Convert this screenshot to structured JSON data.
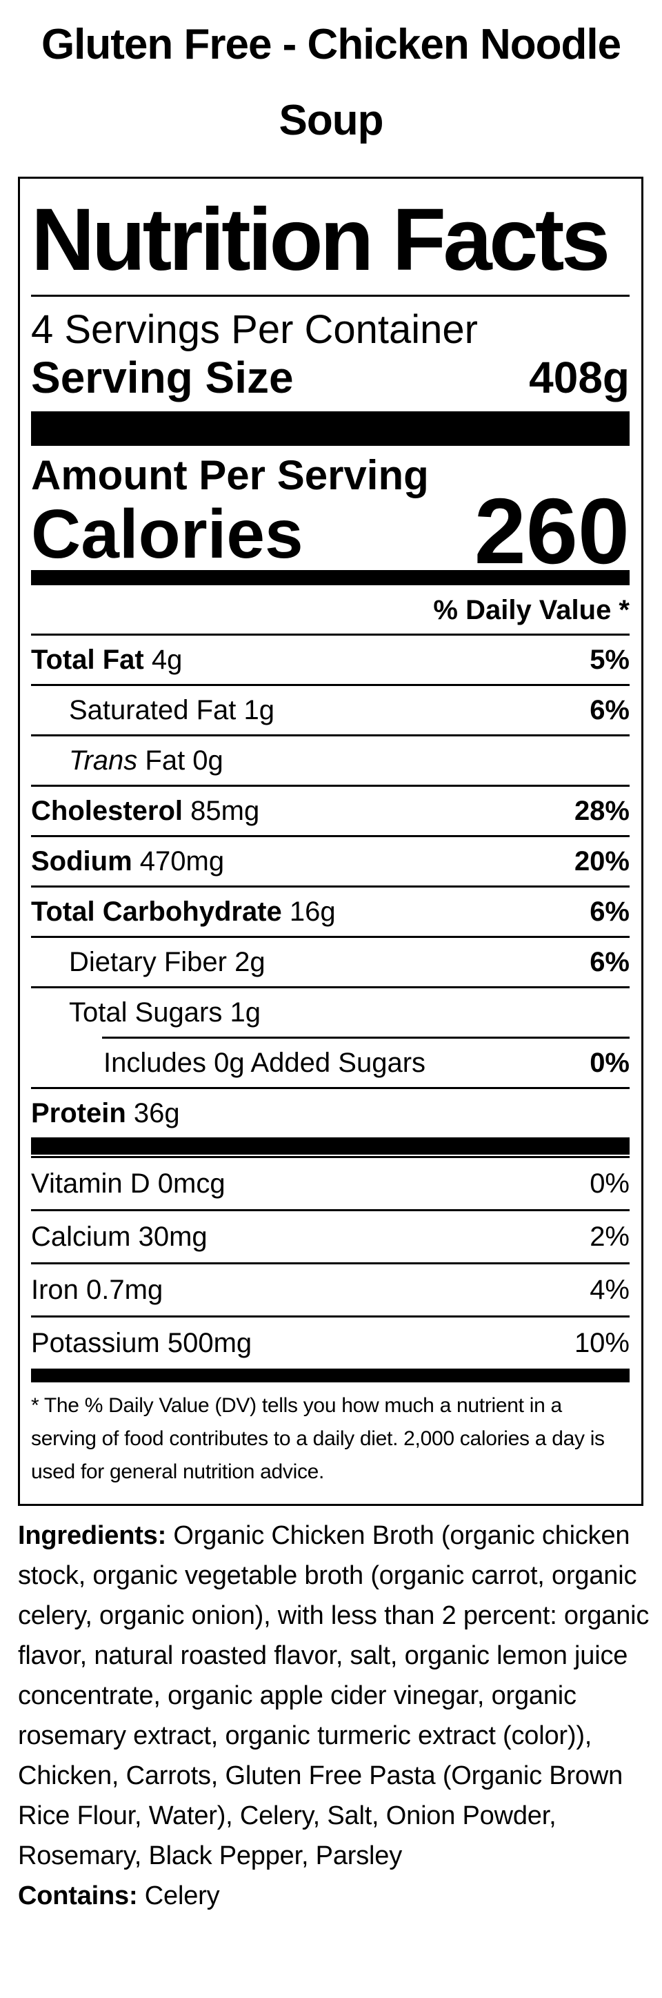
{
  "page_title": "Gluten Free - Chicken Noodle Soup",
  "colors": {
    "text": "#000000",
    "background": "#ffffff"
  },
  "label": {
    "title": "Nutrition Facts",
    "servings_per_container": "4 Servings Per Container",
    "serving_size_label": "Serving Size",
    "serving_size_value": "408g",
    "amount_per_serving": "Amount Per Serving",
    "calories_label": "Calories",
    "calories_value": "260",
    "daily_value_header": "% Daily Value *",
    "nutrient_rows": [
      {
        "name": "Total Fat",
        "amount": "4g",
        "dv": "5%",
        "indent": 0,
        "name_bold": true,
        "dv_bold": true
      },
      {
        "name": "Saturated Fat",
        "amount": "1g",
        "dv": "6%",
        "indent": 1,
        "name_bold": false,
        "dv_bold": true
      },
      {
        "name_italic": "Trans",
        "name": " Fat",
        "amount": "0g",
        "dv": "",
        "indent": 1,
        "name_bold": false,
        "dv_bold": false
      },
      {
        "name": "Cholesterol",
        "amount": "85mg",
        "dv": "28%",
        "indent": 0,
        "name_bold": true,
        "dv_bold": true
      },
      {
        "name": "Sodium",
        "amount": "470mg",
        "dv": "20%",
        "indent": 0,
        "name_bold": true,
        "dv_bold": true
      },
      {
        "name": "Total Carbohydrate",
        "amount": "16g",
        "dv": "6%",
        "indent": 0,
        "name_bold": true,
        "dv_bold": true
      },
      {
        "name": "Dietary Fiber",
        "amount": "2g",
        "dv": "6%",
        "indent": 1,
        "name_bold": false,
        "dv_bold": true
      },
      {
        "name": "Total Sugars",
        "amount": "1g",
        "dv": "",
        "indent": 1,
        "name_bold": false,
        "dv_bold": false,
        "sep_indent2": true
      },
      {
        "name": "Includes 0g Added Sugars",
        "amount": "",
        "dv": "0%",
        "indent": 2,
        "name_bold": false,
        "dv_bold": true
      },
      {
        "name": "Protein",
        "amount": "36g",
        "dv": "",
        "indent": 0,
        "name_bold": true,
        "dv_bold": false,
        "no_sep": true
      }
    ],
    "vitamin_rows": [
      {
        "name": "Vitamin D",
        "amount": "0mcg",
        "dv": "0%",
        "indent": 0,
        "name_bold": false,
        "dv_bold": false
      },
      {
        "name": "Calcium",
        "amount": "30mg",
        "dv": "2%",
        "indent": 0,
        "name_bold": false,
        "dv_bold": false
      },
      {
        "name": "Iron",
        "amount": "0.7mg",
        "dv": "4%",
        "indent": 0,
        "name_bold": false,
        "dv_bold": false
      },
      {
        "name": "Potassium",
        "amount": "500mg",
        "dv": "10%",
        "indent": 0,
        "name_bold": false,
        "dv_bold": false,
        "no_sep": true
      }
    ],
    "footnote": "* The % Daily Value (DV) tells you how much a nutrient in a serving of food contributes to a daily diet. 2,000 calories a day is used for general nutrition advice."
  },
  "ingredients": {
    "label": "Ingredients:",
    "text": " Organic Chicken Broth (organic chicken stock, organic vegetable broth (organic carrot, organic celery, organic onion), with less than 2 percent: organic flavor, natural roasted flavor, salt, organic lemon juice concentrate, organic apple cider vinegar, organic rosemary extract, organic turmeric extract (color)), Chicken, Carrots, Gluten Free Pasta (Organic Brown Rice Flour, Water), Celery, Salt, Onion Powder, Rosemary, Black Pepper, Parsley",
    "contains_label": "Contains:",
    "contains_text": " Celery"
  }
}
